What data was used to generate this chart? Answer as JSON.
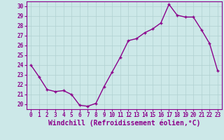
{
  "x": [
    0,
    1,
    2,
    3,
    4,
    5,
    6,
    7,
    8,
    9,
    10,
    11,
    12,
    13,
    14,
    15,
    16,
    17,
    18,
    19,
    20,
    21,
    22,
    23
  ],
  "y": [
    24.0,
    22.8,
    21.5,
    21.3,
    21.4,
    21.0,
    19.9,
    19.8,
    20.1,
    21.8,
    23.3,
    24.8,
    26.5,
    26.7,
    27.3,
    27.7,
    28.3,
    30.2,
    29.1,
    28.9,
    28.9,
    27.6,
    26.2,
    23.4
  ],
  "line_color": "#8b008b",
  "marker": "+",
  "marker_size": 3.5,
  "linewidth": 1.0,
  "xlabel": "Windchill (Refroidissement éolien,°C)",
  "ylabel": "",
  "title": "",
  "xlim": [
    -0.5,
    23.5
  ],
  "ylim": [
    19.5,
    30.5
  ],
  "yticks": [
    20,
    21,
    22,
    23,
    24,
    25,
    26,
    27,
    28,
    29,
    30
  ],
  "xticks": [
    0,
    1,
    2,
    3,
    4,
    5,
    6,
    7,
    8,
    9,
    10,
    11,
    12,
    13,
    14,
    15,
    16,
    17,
    18,
    19,
    20,
    21,
    22,
    23
  ],
  "background_color": "#cce8e8",
  "grid_color": "#b0d0d0",
  "font_color": "#8b008b",
  "tick_fontsize": 5.5,
  "xlabel_fontsize": 7.0
}
